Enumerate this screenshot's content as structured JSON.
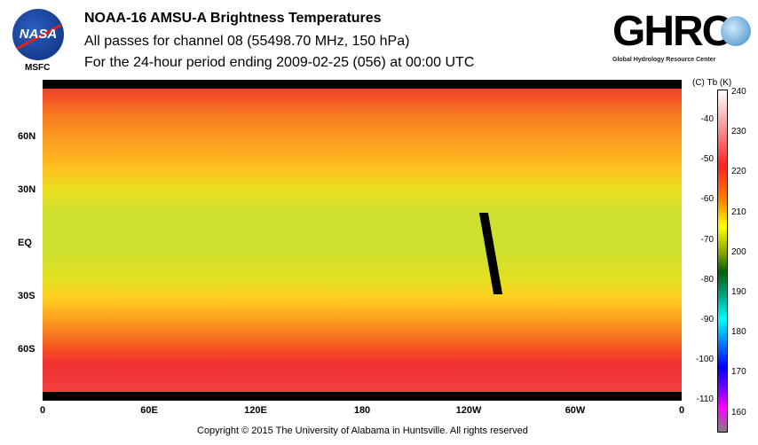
{
  "header": {
    "title": "NOAA-16 AMSU-A Brightness Temperatures",
    "subtitle": "All passes for channel 08 (55498.70 MHz, 150 hPa)",
    "period": "For the 24-hour period ending 2009-02-25 (056) at 00:00 UTC"
  },
  "logos": {
    "nasa": "NASA",
    "msfc": "MSFC",
    "ghrc": "GHRC",
    "ghrc_sub": "Global Hydrology Resource Center"
  },
  "map": {
    "lat_labels": [
      "60N",
      "30N",
      "EQ",
      "30S",
      "60S"
    ],
    "lon_labels": [
      "0",
      "60E",
      "120E",
      "180",
      "120W",
      "60W",
      "0"
    ]
  },
  "colorbar": {
    "header": "(C)  Tb  (K)",
    "celsius": [
      "-40",
      "-50",
      "-60",
      "-70",
      "-80",
      "-90",
      "-100",
      "-110"
    ],
    "kelvin": [
      "240",
      "230",
      "220",
      "210",
      "200",
      "190",
      "180",
      "170",
      "160"
    ],
    "range_k": [
      157,
      240
    ]
  },
  "footer": {
    "copyright": "Copyright © 2015 The University of Alabama in Huntsville.  All rights reserved"
  }
}
